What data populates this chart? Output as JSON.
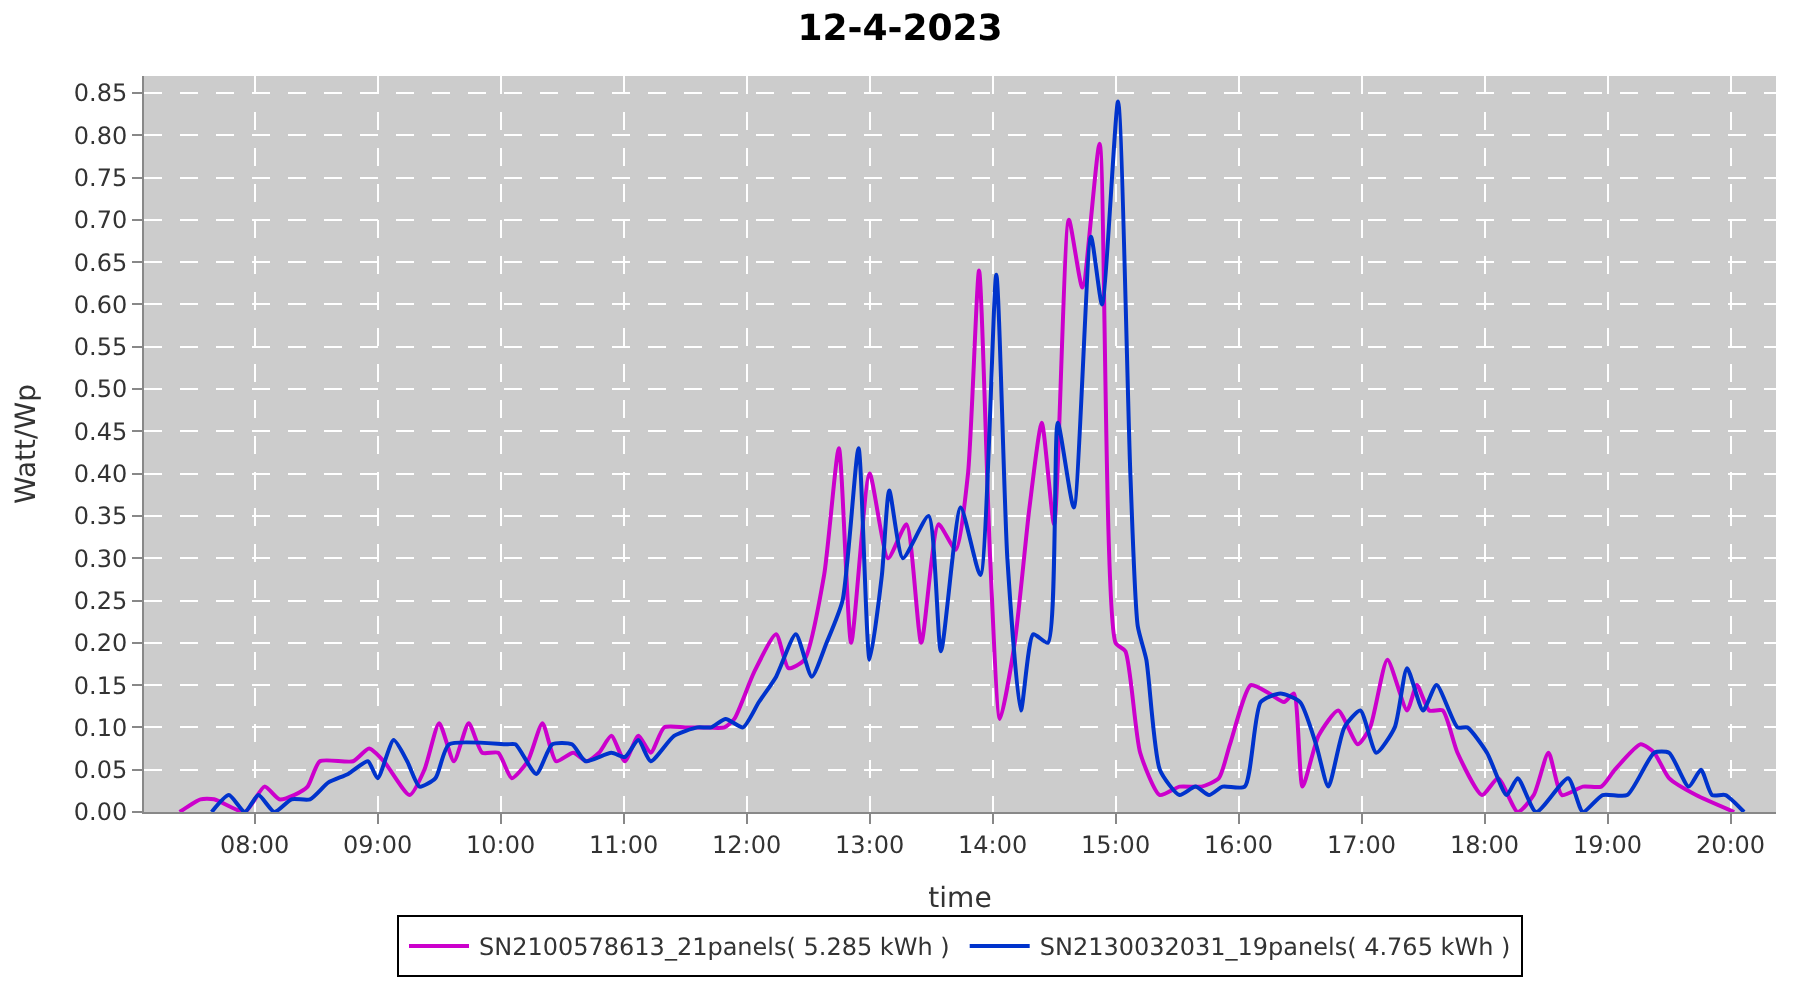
{
  "chart_data": {
    "type": "line",
    "title": "12-4-2023",
    "xlabel": "time",
    "ylabel": "Watt/Wp",
    "xlim": [
      7.1,
      20.37
    ],
    "ylim": [
      0,
      0.87
    ],
    "xticks": [
      {
        "value": 8,
        "label": "08:00"
      },
      {
        "value": 9,
        "label": "09:00"
      },
      {
        "value": 10,
        "label": "10:00"
      },
      {
        "value": 11,
        "label": "11:00"
      },
      {
        "value": 12,
        "label": "12:00"
      },
      {
        "value": 13,
        "label": "13:00"
      },
      {
        "value": 14,
        "label": "14:00"
      },
      {
        "value": 15,
        "label": "15:00"
      },
      {
        "value": 16,
        "label": "16:00"
      },
      {
        "value": 17,
        "label": "17:00"
      },
      {
        "value": 18,
        "label": "18:00"
      },
      {
        "value": 19,
        "label": "19:00"
      },
      {
        "value": 20,
        "label": "20:00"
      }
    ],
    "yticks": [
      {
        "value": 0,
        "label": "0.00"
      },
      {
        "value": 0.05,
        "label": "0.05"
      },
      {
        "value": 0.1,
        "label": "0.10"
      },
      {
        "value": 0.15,
        "label": "0.15"
      },
      {
        "value": 0.2,
        "label": "0.20"
      },
      {
        "value": 0.25,
        "label": "0.25"
      },
      {
        "value": 0.3,
        "label": "0.30"
      },
      {
        "value": 0.35,
        "label": "0.35"
      },
      {
        "value": 0.4,
        "label": "0.40"
      },
      {
        "value": 0.45,
        "label": "0.45"
      },
      {
        "value": 0.5,
        "label": "0.50"
      },
      {
        "value": 0.55,
        "label": "0.55"
      },
      {
        "value": 0.6,
        "label": "0.60"
      },
      {
        "value": 0.65,
        "label": "0.65"
      },
      {
        "value": 0.7,
        "label": "0.70"
      },
      {
        "value": 0.75,
        "label": "0.75"
      },
      {
        "value": 0.8,
        "label": "0.80"
      },
      {
        "value": 0.85,
        "label": "0.85"
      }
    ],
    "grid": true,
    "legend": "bottom",
    "line_style": "solid",
    "marker": "none",
    "series": [
      {
        "name": "SN2100578613_21panels( 5.285 kWh )",
        "color": "#cc00cc",
        "x": [
          7.39,
          7.56,
          7.67,
          7.92,
          8.08,
          8.2,
          8.32,
          8.43,
          8.53,
          8.8,
          8.93,
          9.05,
          9.26,
          9.38,
          9.5,
          9.62,
          9.74,
          9.85,
          9.98,
          10.09,
          10.22,
          10.34,
          10.45,
          10.59,
          10.7,
          10.8,
          10.9,
          11.01,
          11.12,
          11.22,
          11.33,
          11.5,
          11.65,
          11.82,
          11.9,
          12.06,
          12.24,
          12.34,
          12.47,
          12.63,
          12.75,
          12.85,
          13.0,
          13.15,
          13.3,
          13.42,
          13.56,
          13.7,
          13.8,
          13.89,
          13.98,
          14.06,
          14.18,
          14.3,
          14.4,
          14.5,
          14.62,
          14.73,
          14.87,
          15.0,
          15.08,
          15.2,
          15.36,
          15.52,
          15.7,
          15.84,
          15.93,
          16.1,
          16.25,
          16.37,
          16.45,
          16.52,
          16.65,
          16.81,
          16.97,
          17.07,
          17.21,
          17.37,
          17.45,
          17.55,
          17.66,
          17.78,
          17.98,
          18.11,
          18.27,
          18.4,
          18.52,
          18.63,
          18.8,
          18.95,
          19.06,
          19.27,
          19.38,
          19.5,
          19.72,
          20.03
        ],
        "values": [
          0.0,
          0.015,
          0.015,
          0.0,
          0.03,
          0.015,
          0.02,
          0.03,
          0.06,
          0.06,
          0.075,
          0.06,
          0.02,
          0.05,
          0.105,
          0.06,
          0.105,
          0.07,
          0.07,
          0.04,
          0.06,
          0.105,
          0.06,
          0.07,
          0.06,
          0.07,
          0.09,
          0.06,
          0.09,
          0.07,
          0.1,
          0.1,
          0.1,
          0.1,
          0.11,
          0.165,
          0.21,
          0.17,
          0.18,
          0.28,
          0.43,
          0.2,
          0.4,
          0.3,
          0.34,
          0.2,
          0.34,
          0.31,
          0.4,
          0.64,
          0.3,
          0.11,
          0.2,
          0.36,
          0.46,
          0.34,
          0.7,
          0.62,
          0.79,
          0.2,
          0.19,
          0.07,
          0.02,
          0.03,
          0.03,
          0.04,
          0.08,
          0.15,
          0.14,
          0.13,
          0.14,
          0.03,
          0.09,
          0.12,
          0.08,
          0.1,
          0.18,
          0.12,
          0.15,
          0.12,
          0.12,
          0.07,
          0.02,
          0.04,
          0.0,
          0.02,
          0.07,
          0.02,
          0.03,
          0.03,
          0.05,
          0.08,
          0.07,
          0.04,
          0.02,
          0.0
        ]
      },
      {
        "name": "SN2130032031_19panels( 4.765 kWh )",
        "color": "#0033cc",
        "x": [
          7.65,
          7.79,
          7.92,
          8.03,
          8.16,
          8.3,
          8.45,
          8.6,
          8.76,
          8.92,
          9.0,
          9.13,
          9.24,
          9.34,
          9.47,
          9.58,
          10.05,
          10.12,
          10.29,
          10.42,
          10.58,
          10.69,
          10.9,
          11.01,
          11.12,
          11.22,
          11.41,
          11.6,
          11.71,
          11.83,
          11.97,
          12.1,
          12.24,
          12.4,
          12.53,
          12.65,
          12.78,
          12.91,
          13.0,
          13.1,
          13.16,
          13.27,
          13.48,
          13.58,
          13.74,
          13.9,
          14.03,
          14.12,
          14.23,
          14.33,
          14.45,
          14.53,
          14.66,
          14.8,
          14.89,
          15.02,
          15.12,
          15.18,
          15.25,
          15.36,
          15.52,
          15.65,
          15.76,
          15.87,
          16.05,
          16.18,
          16.34,
          16.5,
          16.63,
          16.73,
          16.86,
          16.99,
          17.12,
          17.27,
          17.37,
          17.5,
          17.61,
          17.78,
          17.86,
          18.02,
          18.18,
          18.27,
          18.42,
          18.68,
          18.8,
          18.96,
          19.16,
          19.38,
          19.5,
          19.66,
          19.76,
          19.85,
          19.96,
          20.11
        ],
        "values": [
          0.0,
          0.02,
          0.0,
          0.02,
          0.0,
          0.015,
          0.015,
          0.035,
          0.045,
          0.06,
          0.04,
          0.085,
          0.06,
          0.03,
          0.04,
          0.08,
          0.08,
          0.08,
          0.045,
          0.08,
          0.08,
          0.06,
          0.07,
          0.065,
          0.085,
          0.06,
          0.09,
          0.1,
          0.1,
          0.11,
          0.1,
          0.13,
          0.16,
          0.21,
          0.16,
          0.2,
          0.25,
          0.43,
          0.18,
          0.28,
          0.38,
          0.3,
          0.35,
          0.19,
          0.36,
          0.28,
          0.635,
          0.3,
          0.12,
          0.21,
          0.2,
          0.46,
          0.36,
          0.68,
          0.6,
          0.84,
          0.4,
          0.22,
          0.18,
          0.05,
          0.02,
          0.03,
          0.02,
          0.03,
          0.03,
          0.13,
          0.14,
          0.13,
          0.08,
          0.03,
          0.1,
          0.12,
          0.07,
          0.1,
          0.17,
          0.12,
          0.15,
          0.1,
          0.1,
          0.07,
          0.02,
          0.04,
          0.0,
          0.04,
          0.0,
          0.02,
          0.02,
          0.07,
          0.07,
          0.03,
          0.05,
          0.02,
          0.02,
          0.0
        ]
      }
    ]
  }
}
